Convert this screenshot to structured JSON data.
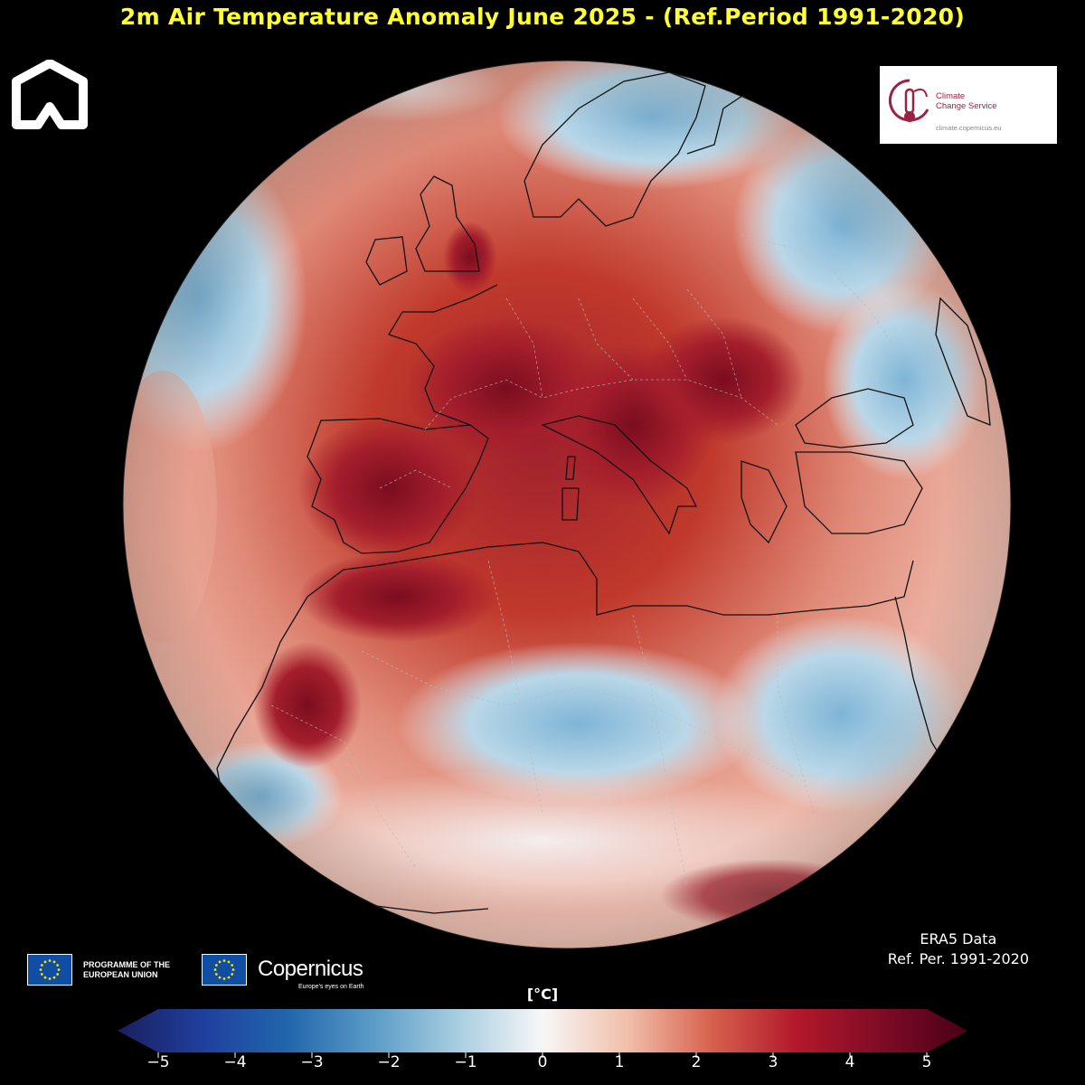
{
  "title": "2m Air Temperature Anomaly June 2025 - (Ref.Period 1991-2020)",
  "colors": {
    "title": "#ffff33",
    "background": "#000000",
    "warm_deep": "#67001f",
    "warm": "#b2182b",
    "warm_light": "#d6604d",
    "neutral": "#f7f7f7",
    "cool_light": "#92c5de",
    "cool": "#2166ac",
    "cool_deep": "#053061",
    "c3s_brand": "#9b2242"
  },
  "logos": {
    "brand_icon": "house-outline-icon",
    "c3s": {
      "line1": "Climate",
      "line2": "Change Service",
      "url": "climate.copernicus.eu",
      "icon": "thermometer-cloud-icon"
    },
    "eu_programme": {
      "line1": "PROGRAMME OF THE",
      "line2": "EUROPEAN UNION",
      "icon": "eu-flag-icon"
    },
    "copernicus": {
      "name": "Copernicus",
      "tagline": "Europe's eyes on Earth"
    }
  },
  "data_source": {
    "line1": "ERA5 Data",
    "line2": "Ref. Per.  1991-2020"
  },
  "colorbar": {
    "unit": "[°C]",
    "min": -5,
    "max": 5,
    "ticks": [
      "−5",
      "−4",
      "−3",
      "−2",
      "−1",
      "0",
      "1",
      "2",
      "3",
      "4",
      "5"
    ],
    "extend": "both"
  },
  "map": {
    "projection": "orthographic",
    "region": "Europe, North Africa, North Atlantic",
    "anomaly_range": [
      -5,
      5
    ]
  }
}
